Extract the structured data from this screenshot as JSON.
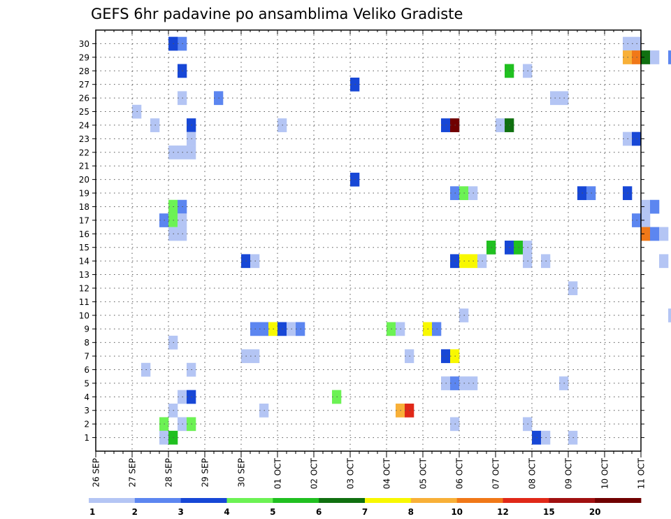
{
  "chart_data": {
    "type": "heatmap",
    "title": "GEFS 6hr padavine po ansamblima Veliko Gradiste",
    "x_ticks": [
      "26 SEP",
      "27 SEP",
      "28 SEP",
      "29 SEP",
      "30 SEP",
      "01 OCT",
      "02 OCT",
      "03 OCT",
      "04 OCT",
      "05 OCT",
      "06 OCT",
      "07 OCT",
      "08 OCT",
      "09 OCT",
      "10 OCT",
      "11 OCT"
    ],
    "y_ticks": [
      "1",
      "2",
      "3",
      "4",
      "5",
      "6",
      "7",
      "8",
      "9",
      "10",
      "11",
      "12",
      "13",
      "14",
      "15",
      "16",
      "17",
      "18",
      "19",
      "20",
      "21",
      "22",
      "23",
      "24",
      "25",
      "26",
      "27",
      "28",
      "29",
      "30"
    ],
    "x_step_unit": "6hr",
    "steps_per_day": 4,
    "x_range_days": [
      0,
      15
    ],
    "y_range_members": [
      0,
      30
    ],
    "grid": true,
    "legend": {
      "position": "bottom",
      "levels": [
        "1",
        "2",
        "3",
        "4",
        "5",
        "6",
        "7",
        "8",
        "10",
        "12",
        "15",
        "20"
      ],
      "colors": [
        "#b4c5f4",
        "#5c86f0",
        "#1747d6",
        "#6cf254",
        "#20c020",
        "#107010",
        "#f8f800",
        "#f8b038",
        "#f07818",
        "#e02818",
        "#a01010",
        "#700000"
      ]
    },
    "cells": [
      [
        8,
        30,
        1
      ],
      [
        9,
        30,
        1
      ],
      [
        8,
        30,
        2
      ],
      [
        58,
        30,
        0
      ],
      [
        59,
        30,
        0
      ],
      [
        58,
        29,
        7
      ],
      [
        59,
        29,
        8
      ],
      [
        60,
        29,
        5
      ],
      [
        61,
        29,
        0
      ],
      [
        63,
        29,
        1
      ],
      [
        64,
        29,
        0
      ],
      [
        9,
        28,
        2
      ],
      [
        45,
        28,
        4
      ],
      [
        47,
        28,
        0
      ],
      [
        28,
        27,
        2
      ],
      [
        9,
        26,
        0
      ],
      [
        13,
        26,
        1
      ],
      [
        50,
        26,
        0
      ],
      [
        51,
        26,
        0
      ],
      [
        4,
        25,
        0
      ],
      [
        6,
        24,
        0
      ],
      [
        10,
        24,
        2
      ],
      [
        20,
        24,
        0
      ],
      [
        38,
        24,
        2
      ],
      [
        39,
        24,
        11
      ],
      [
        44,
        24,
        0
      ],
      [
        45,
        24,
        5
      ],
      [
        10,
        23,
        0
      ],
      [
        58,
        23,
        0
      ],
      [
        59,
        23,
        2
      ],
      [
        8,
        22,
        0
      ],
      [
        9,
        22,
        0
      ],
      [
        10,
        22,
        0
      ],
      [
        28,
        20,
        2
      ],
      [
        39,
        19,
        1
      ],
      [
        40,
        19,
        3
      ],
      [
        41,
        19,
        0
      ],
      [
        53,
        19,
        2
      ],
      [
        54,
        19,
        1
      ],
      [
        58,
        19,
        2
      ],
      [
        8,
        18,
        3
      ],
      [
        9,
        18,
        1
      ],
      [
        60,
        18,
        0
      ],
      [
        61,
        18,
        1
      ],
      [
        7,
        17,
        1
      ],
      [
        8,
        17,
        3
      ],
      [
        9,
        17,
        0
      ],
      [
        59,
        17,
        1
      ],
      [
        60,
        17,
        0
      ],
      [
        8,
        16,
        0
      ],
      [
        9,
        16,
        0
      ],
      [
        60,
        16,
        8
      ],
      [
        61,
        16,
        1
      ],
      [
        62,
        16,
        0
      ],
      [
        43,
        15,
        4
      ],
      [
        45,
        15,
        2
      ],
      [
        46,
        15,
        4
      ],
      [
        47,
        15,
        0
      ],
      [
        16,
        14,
        2
      ],
      [
        17,
        14,
        0
      ],
      [
        39,
        14,
        2
      ],
      [
        40,
        14,
        6
      ],
      [
        41,
        14,
        6
      ],
      [
        42,
        14,
        0
      ],
      [
        47,
        14,
        0
      ],
      [
        49,
        14,
        0
      ],
      [
        62,
        14,
        0
      ],
      [
        52,
        12,
        0
      ],
      [
        40,
        10,
        0
      ],
      [
        63,
        10,
        0
      ],
      [
        17,
        9,
        1
      ],
      [
        18,
        9,
        1
      ],
      [
        19,
        9,
        6
      ],
      [
        20,
        9,
        2
      ],
      [
        21,
        9,
        0
      ],
      [
        22,
        9,
        1
      ],
      [
        32,
        9,
        3
      ],
      [
        33,
        9,
        0
      ],
      [
        36,
        9,
        6
      ],
      [
        37,
        9,
        1
      ],
      [
        8,
        8,
        0
      ],
      [
        16,
        7,
        0
      ],
      [
        17,
        7,
        0
      ],
      [
        34,
        7,
        0
      ],
      [
        38,
        7,
        2
      ],
      [
        39,
        7,
        6
      ],
      [
        5,
        6,
        0
      ],
      [
        10,
        6,
        0
      ],
      [
        38,
        5,
        0
      ],
      [
        39,
        5,
        1
      ],
      [
        40,
        5,
        0
      ],
      [
        41,
        5,
        0
      ],
      [
        51,
        5,
        0
      ],
      [
        64,
        5,
        5
      ],
      [
        65,
        5,
        5
      ],
      [
        9,
        4,
        0
      ],
      [
        10,
        4,
        2
      ],
      [
        26,
        4,
        3
      ],
      [
        8,
        3,
        0
      ],
      [
        18,
        3,
        0
      ],
      [
        33,
        3,
        7
      ],
      [
        34,
        3,
        9
      ],
      [
        64,
        3,
        4
      ],
      [
        65,
        3,
        1
      ],
      [
        66,
        3,
        0
      ],
      [
        7,
        2,
        3
      ],
      [
        9,
        2,
        0
      ],
      [
        10,
        2,
        3
      ],
      [
        39,
        2,
        0
      ],
      [
        47,
        2,
        0
      ],
      [
        65,
        2,
        2
      ],
      [
        66,
        2,
        6
      ],
      [
        67,
        2,
        3
      ],
      [
        7,
        1,
        0
      ],
      [
        8,
        1,
        4
      ],
      [
        48,
        1,
        2
      ],
      [
        49,
        1,
        0
      ],
      [
        52,
        1,
        0
      ]
    ]
  }
}
